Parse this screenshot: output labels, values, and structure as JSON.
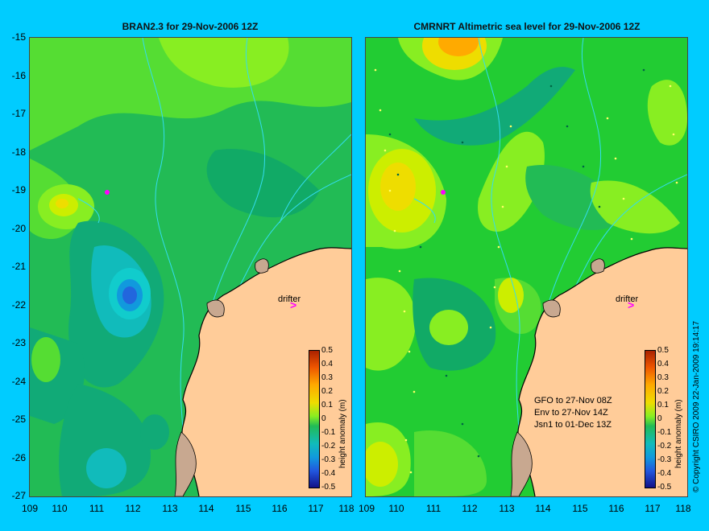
{
  "panels": [
    {
      "title": "BRAN2.3 for 29-Nov-2006 12Z",
      "drifter_label": "drifter",
      "colorbar_label": "height anomaly (m)"
    },
    {
      "title": "CMRNRT Altimetric sea level  for 29-Nov-2006 12Z",
      "drifter_label": "drifter",
      "colorbar_label": "height anomaly (m)",
      "info": [
        "GFO to 27-Nov 08Z",
        "Env to 27-Nov 14Z",
        "Jsn1 to 01-Dec 13Z"
      ]
    }
  ],
  "y_ticks": [
    "-15",
    "-16",
    "-17",
    "-18",
    "-19",
    "-20",
    "-21",
    "-22",
    "-23",
    "-24",
    "-25",
    "-26",
    "-27"
  ],
  "x_ticks": [
    "109",
    "110",
    "111",
    "112",
    "113",
    "114",
    "115",
    "116",
    "117",
    "118"
  ],
  "colorbar_ticks": [
    "0.5",
    "0.4",
    "0.3",
    "0.2",
    "0.1",
    "0",
    "-0.1",
    "-0.2",
    "-0.3",
    "-0.4",
    "-0.5"
  ],
  "copyright": "© Copyright CSIRO 2009   22-Jan-2009 19:14:17",
  "colors": {
    "background": "#00ccff",
    "land": "#ffcc99",
    "drifter": "#ff00ff"
  }
}
